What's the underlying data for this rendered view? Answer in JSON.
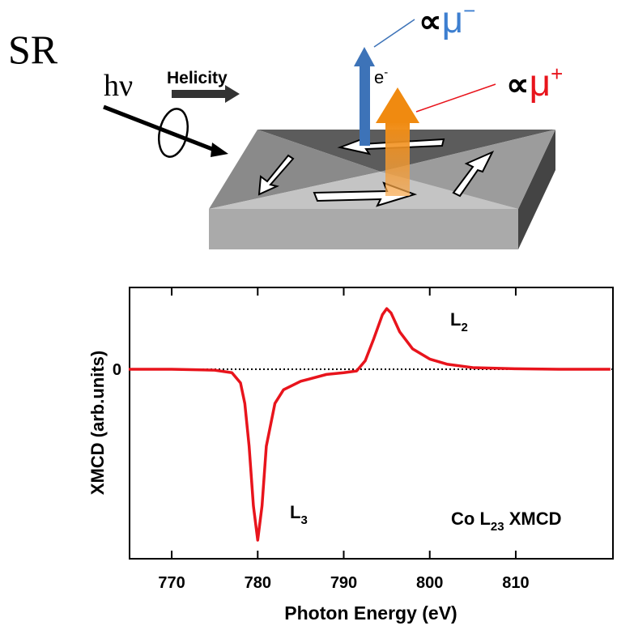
{
  "diagram": {
    "source": "SR",
    "photon": "hν",
    "helicity": "Helicity",
    "electron": "e",
    "electron_charge": "-",
    "minus_prop": "∝",
    "minus_mu": "μ",
    "minus_sign": "−",
    "plus_prop": "∝",
    "plus_mu": "μ",
    "plus_sign": "+"
  },
  "chart_data": {
    "type": "line",
    "x_label": "Photon Energy (eV)",
    "y_label": "XMCD (arb.units)",
    "x": [
      765,
      770,
      775,
      777,
      778,
      778.5,
      779,
      779.5,
      780,
      780.5,
      781,
      782,
      783,
      785,
      788,
      790,
      791.5,
      792.5,
      793.5,
      794.5,
      795,
      795.5,
      796.5,
      798,
      800,
      802,
      805,
      810,
      815,
      821
    ],
    "values": [
      0,
      0,
      -0.005,
      -0.02,
      -0.08,
      -0.2,
      -0.45,
      -0.8,
      -1.0,
      -0.8,
      -0.45,
      -0.2,
      -0.12,
      -0.07,
      -0.03,
      -0.02,
      -0.01,
      0.05,
      0.18,
      0.32,
      0.355,
      0.33,
      0.22,
      0.12,
      0.06,
      0.03,
      0.01,
      0.003,
      0,
      0
    ],
    "color": "#e8141c",
    "xlim": [
      765.1,
      821.3
    ],
    "ylim": [
      -1.109,
      0.479
    ],
    "xticks": [
      770,
      780,
      790,
      800,
      810
    ],
    "yticks": [
      0
    ],
    "zero_line": true,
    "annotations": [
      {
        "text": "L",
        "subscript": "3"
      },
      {
        "text": "L",
        "subscript": "2"
      }
    ],
    "caption": {
      "text": "Co L",
      "subscript": "23",
      "suffix": " XMCD"
    }
  }
}
